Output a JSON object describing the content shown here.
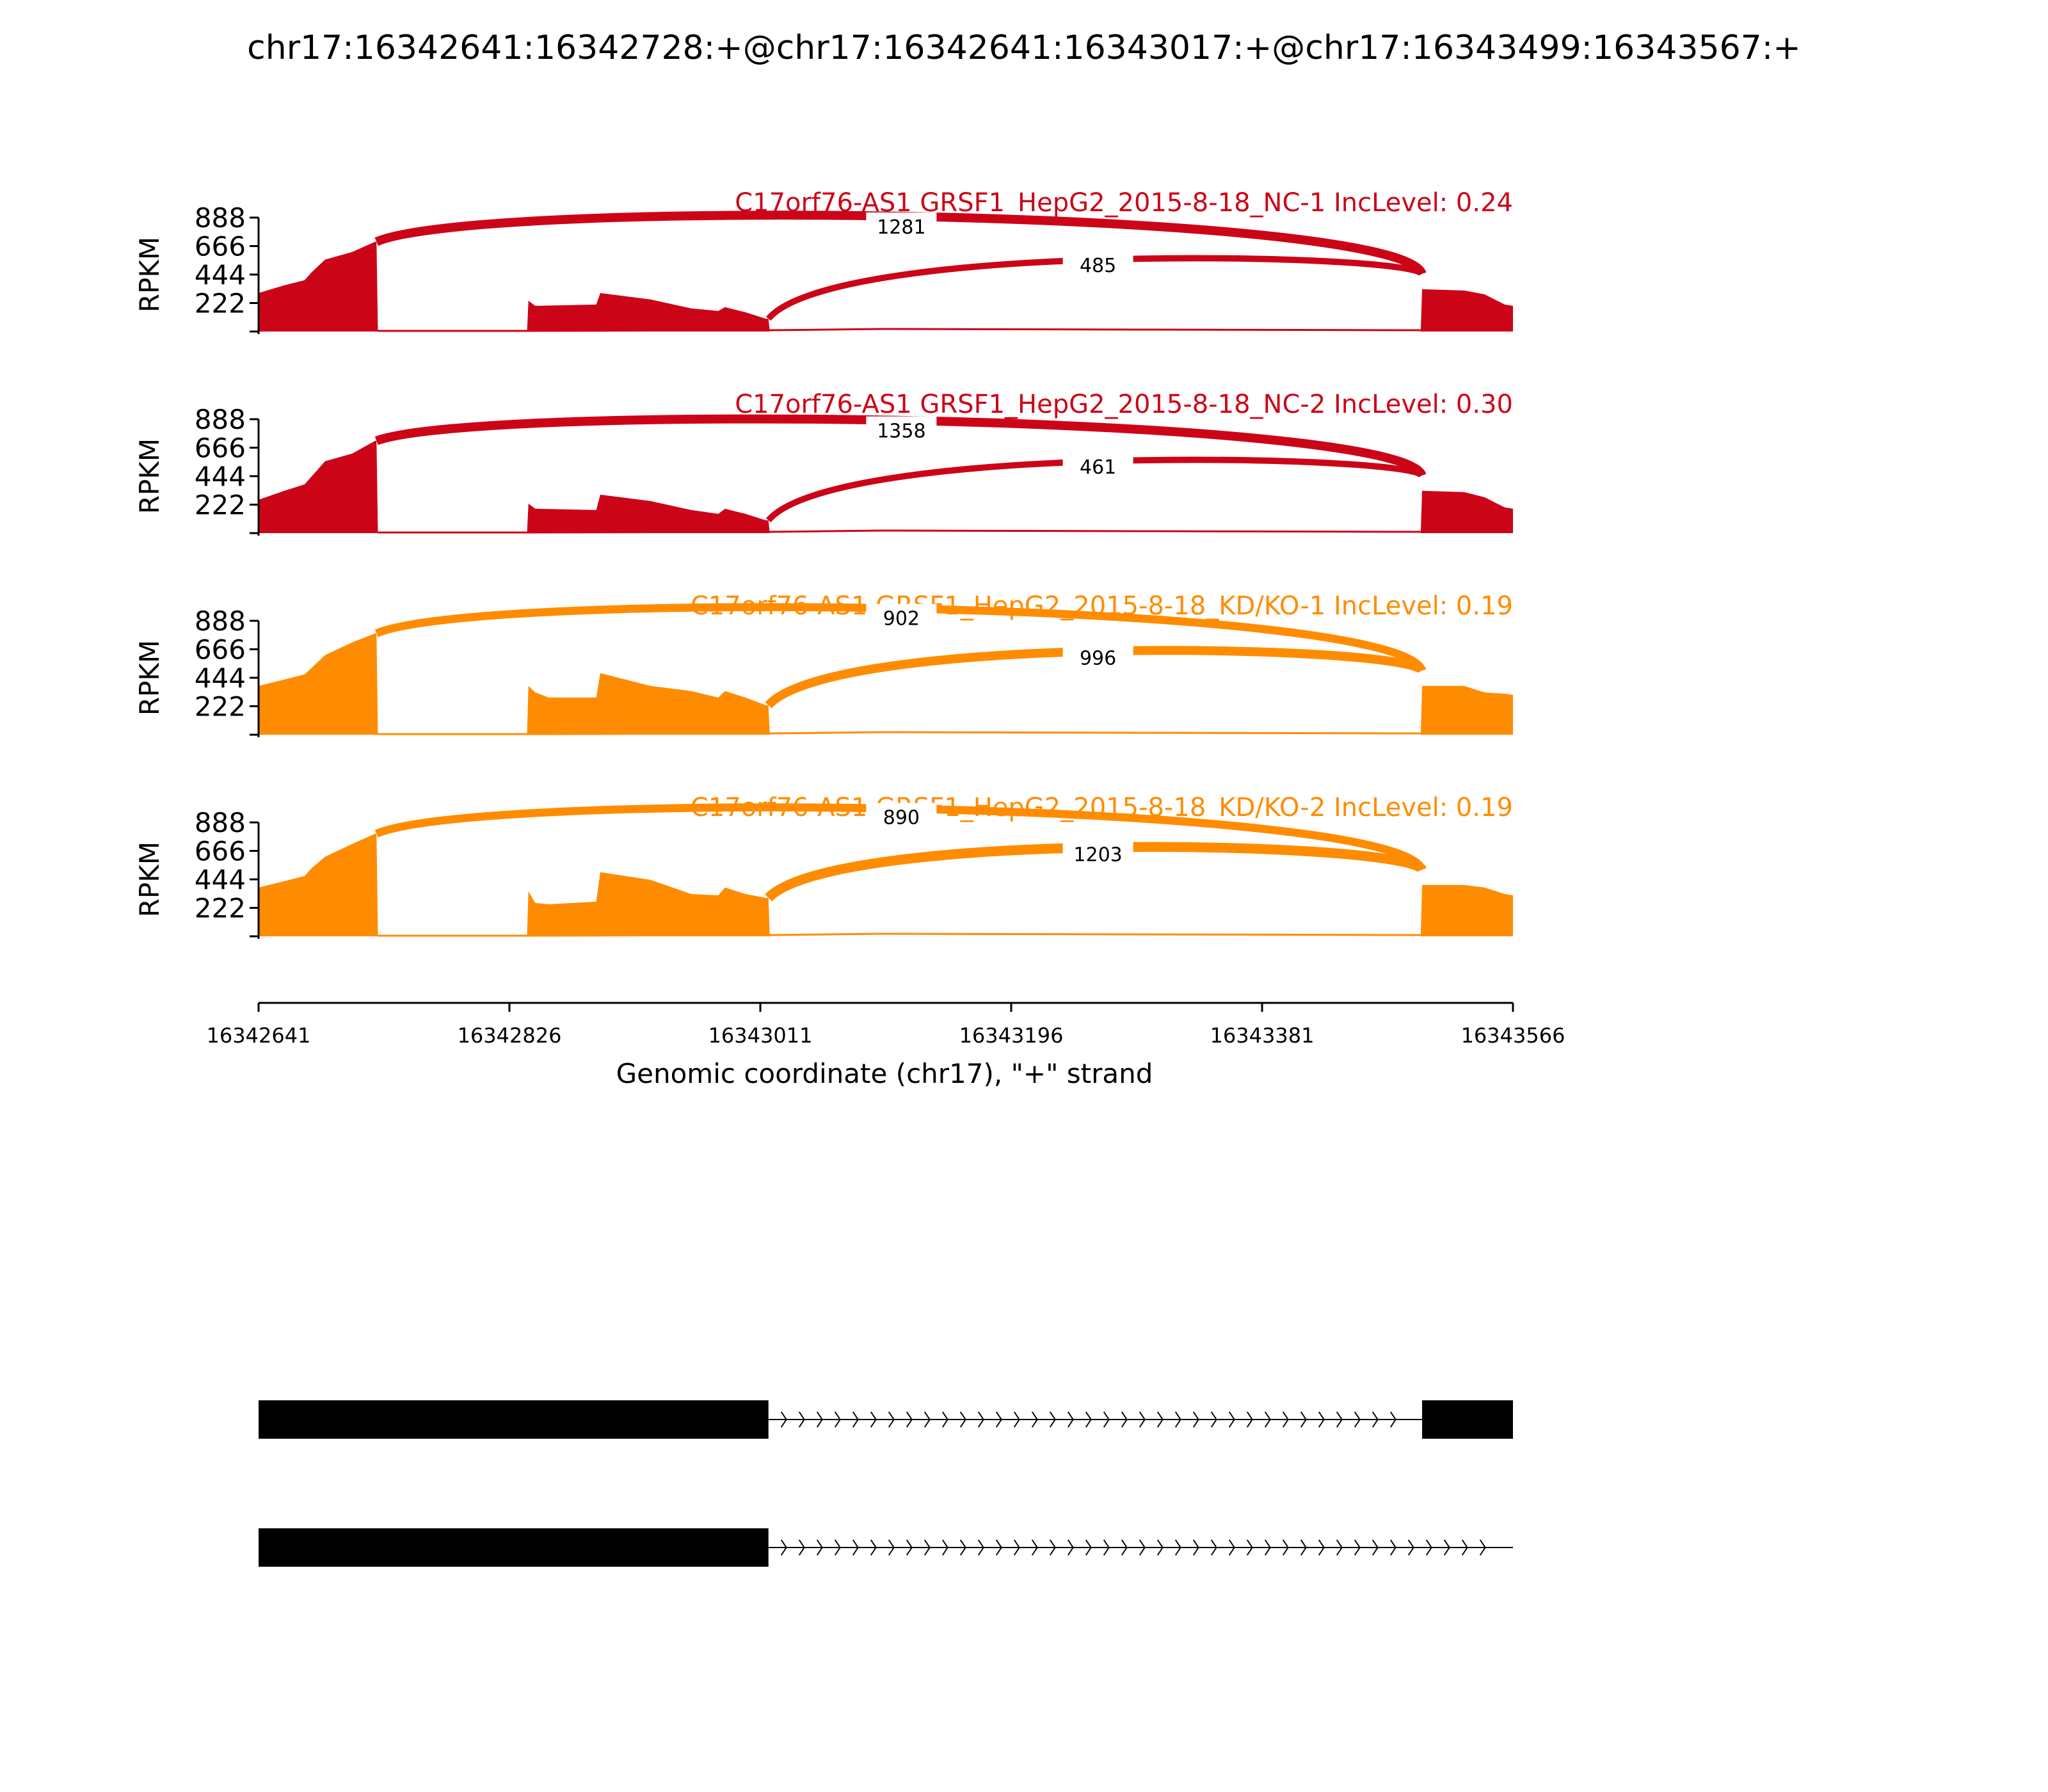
{
  "figure": {
    "title": "chr17:16342641:16342728:+@chr17:16342641:16343017:+@chr17:16343499:16343567:+"
  },
  "colors": {
    "nc": "#cc0418",
    "kd": "#ff8c00",
    "text": "#000000"
  },
  "chart_data": {
    "type": "area",
    "xlabel": "Genomic coordinate (chr17), \"+\" strand",
    "ylabel": "RPKM",
    "xlim": [
      16342641,
      16343566
    ],
    "x_ticks": [
      16342641,
      16342826,
      16343011,
      16343196,
      16343381,
      16343566
    ],
    "x_tick_labels": [
      "16342641",
      "16342826",
      "16343011",
      "16343196",
      "16343381",
      "16343566"
    ],
    "ylim": [
      0,
      888
    ],
    "y_ticks": [
      222,
      444,
      666,
      888
    ],
    "y_tick_labels": [
      "222",
      "444",
      "666",
      "888"
    ],
    "panels": [
      {
        "label": "C17orf76-AS1 GRSF1_HepG2_2015-8-18_NC-1 IncLevel: 0.24",
        "group": "nc",
        "coverage": [
          [
            16342641,
            300
          ],
          [
            16342660,
            360
          ],
          [
            16342675,
            400
          ],
          [
            16342680,
            460
          ],
          [
            16342690,
            560
          ],
          [
            16342710,
            620
          ],
          [
            16342727,
            700
          ],
          [
            16342728,
            700
          ],
          [
            16342729,
            0
          ],
          [
            16342839,
            0
          ],
          [
            16342840,
            240
          ],
          [
            16342845,
            200
          ],
          [
            16342890,
            210
          ],
          [
            16342893,
            300
          ],
          [
            16342930,
            250
          ],
          [
            16342960,
            180
          ],
          [
            16342980,
            160
          ],
          [
            16342985,
            190
          ],
          [
            16343000,
            150
          ],
          [
            16343015,
            100
          ],
          [
            16343017,
            100
          ],
          [
            16343018,
            0
          ],
          [
            16343498,
            0
          ],
          [
            16343499,
            330
          ],
          [
            16343530,
            320
          ],
          [
            16343545,
            290
          ],
          [
            16343560,
            210
          ],
          [
            16343566,
            200
          ]
        ],
        "baseline": [
          [
            16342729,
            0
          ],
          [
            16342839,
            0
          ],
          [
            16343018,
            5
          ],
          [
            16343100,
            15
          ],
          [
            16343300,
            10
          ],
          [
            16343498,
            5
          ]
        ],
        "arcs": [
          {
            "start": 16342728,
            "end": 16343499,
            "count": "1281",
            "label_x": 16343115,
            "label_y": 818,
            "peak": 900,
            "width": 10
          },
          {
            "start": 16343017,
            "end": 16343499,
            "count": "485",
            "label_x": 16343260,
            "label_y": 520,
            "peak": 560,
            "width": 7
          }
        ]
      },
      {
        "label": "C17orf76-AS1 GRSF1_HepG2_2015-8-18_NC-2 IncLevel: 0.30",
        "group": "nc",
        "coverage": [
          [
            16342641,
            260
          ],
          [
            16342660,
            330
          ],
          [
            16342675,
            380
          ],
          [
            16342680,
            440
          ],
          [
            16342690,
            560
          ],
          [
            16342710,
            620
          ],
          [
            16342727,
            720
          ],
          [
            16342728,
            720
          ],
          [
            16342729,
            0
          ],
          [
            16342839,
            0
          ],
          [
            16342840,
            230
          ],
          [
            16342845,
            190
          ],
          [
            16342890,
            180
          ],
          [
            16342893,
            300
          ],
          [
            16342930,
            250
          ],
          [
            16342960,
            180
          ],
          [
            16342980,
            150
          ],
          [
            16342985,
            190
          ],
          [
            16343000,
            150
          ],
          [
            16343015,
            100
          ],
          [
            16343017,
            100
          ],
          [
            16343018,
            0
          ],
          [
            16343498,
            0
          ],
          [
            16343499,
            330
          ],
          [
            16343530,
            320
          ],
          [
            16343545,
            280
          ],
          [
            16343560,
            200
          ],
          [
            16343566,
            190
          ]
        ],
        "baseline": [
          [
            16342729,
            0
          ],
          [
            16342839,
            0
          ],
          [
            16343018,
            5
          ],
          [
            16343100,
            15
          ],
          [
            16343300,
            10
          ],
          [
            16343498,
            5
          ]
        ],
        "arcs": [
          {
            "start": 16342728,
            "end": 16343499,
            "count": "1358",
            "label_x": 16343115,
            "label_y": 800,
            "peak": 870,
            "width": 10
          },
          {
            "start": 16343017,
            "end": 16343499,
            "count": "461",
            "label_x": 16343260,
            "label_y": 520,
            "peak": 560,
            "width": 7
          }
        ]
      },
      {
        "label": "C17orf76-AS1 GRSF1_HepG2_2015-8-18_KD/KO-1 IncLevel: 0.19",
        "group": "kd",
        "coverage": [
          [
            16342641,
            380
          ],
          [
            16342660,
            430
          ],
          [
            16342675,
            470
          ],
          [
            16342680,
            520
          ],
          [
            16342690,
            620
          ],
          [
            16342710,
            720
          ],
          [
            16342727,
            790
          ],
          [
            16342728,
            790
          ],
          [
            16342729,
            0
          ],
          [
            16342839,
            0
          ],
          [
            16342840,
            380
          ],
          [
            16342845,
            330
          ],
          [
            16342855,
            290
          ],
          [
            16342890,
            290
          ],
          [
            16342893,
            480
          ],
          [
            16342930,
            380
          ],
          [
            16342960,
            340
          ],
          [
            16342980,
            290
          ],
          [
            16342985,
            340
          ],
          [
            16343000,
            290
          ],
          [
            16343015,
            230
          ],
          [
            16343017,
            230
          ],
          [
            16343018,
            0
          ],
          [
            16343498,
            0
          ],
          [
            16343499,
            380
          ],
          [
            16343530,
            380
          ],
          [
            16343545,
            330
          ],
          [
            16343560,
            320
          ],
          [
            16343566,
            310
          ]
        ],
        "baseline": [
          [
            16342729,
            0
          ],
          [
            16342839,
            0
          ],
          [
            16343018,
            5
          ],
          [
            16343100,
            15
          ],
          [
            16343300,
            10
          ],
          [
            16343498,
            5
          ]
        ],
        "arcs": [
          {
            "start": 16342728,
            "end": 16343499,
            "count": "902",
            "label_x": 16343115,
            "label_y": 910,
            "peak": 990,
            "width": 9
          },
          {
            "start": 16343017,
            "end": 16343499,
            "count": "996",
            "label_x": 16343260,
            "label_y": 600,
            "peak": 650,
            "width": 10
          }
        ]
      },
      {
        "label": "C17orf76-AS1 GRSF1_HepG2_2015-8-18_KD/KO-2 IncLevel: 0.19",
        "group": "kd",
        "coverage": [
          [
            16342641,
            380
          ],
          [
            16342660,
            430
          ],
          [
            16342675,
            470
          ],
          [
            16342680,
            530
          ],
          [
            16342690,
            620
          ],
          [
            16342710,
            720
          ],
          [
            16342727,
            800
          ],
          [
            16342728,
            800
          ],
          [
            16342729,
            0
          ],
          [
            16342839,
            0
          ],
          [
            16342840,
            350
          ],
          [
            16342845,
            260
          ],
          [
            16342855,
            250
          ],
          [
            16342890,
            270
          ],
          [
            16342893,
            500
          ],
          [
            16342930,
            440
          ],
          [
            16342960,
            330
          ],
          [
            16342980,
            320
          ],
          [
            16342985,
            380
          ],
          [
            16343000,
            330
          ],
          [
            16343015,
            300
          ],
          [
            16343017,
            300
          ],
          [
            16343018,
            0
          ],
          [
            16343498,
            0
          ],
          [
            16343499,
            400
          ],
          [
            16343530,
            400
          ],
          [
            16343545,
            380
          ],
          [
            16343560,
            330
          ],
          [
            16343566,
            320
          ]
        ],
        "baseline": [
          [
            16342729,
            0
          ],
          [
            16342839,
            0
          ],
          [
            16343018,
            5
          ],
          [
            16343100,
            15
          ],
          [
            16343300,
            10
          ],
          [
            16343498,
            5
          ]
        ],
        "arcs": [
          {
            "start": 16342728,
            "end": 16343499,
            "count": "890",
            "label_x": 16343115,
            "label_y": 930,
            "peak": 1000,
            "width": 9
          },
          {
            "start": 16343017,
            "end": 16343499,
            "count": "1203",
            "label_x": 16343260,
            "label_y": 640,
            "peak": 690,
            "width": 11
          }
        ]
      }
    ],
    "isoforms": [
      {
        "exons": [
          [
            16342641,
            16343017
          ],
          [
            16343499,
            16343566
          ]
        ],
        "intron": [
          16343017,
          16343499
        ]
      },
      {
        "exons": [
          [
            16342641,
            16343017
          ]
        ],
        "intron": [
          16343017,
          16343566
        ]
      }
    ]
  }
}
